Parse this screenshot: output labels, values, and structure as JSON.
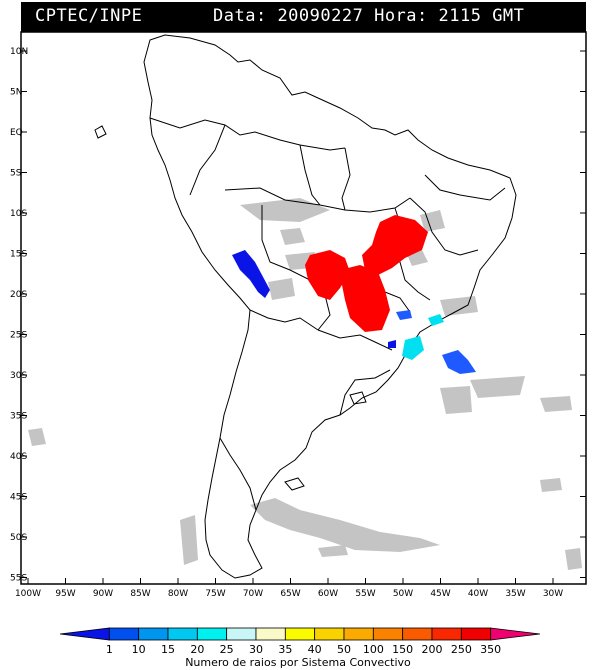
{
  "header": {
    "source": "CPTEC/INPE",
    "date_label": "Data:",
    "date_value": "20090227",
    "time_label": "Hora:",
    "time_value": "2115 GMT"
  },
  "axes": {
    "lat_labels": [
      "10N",
      "5N",
      "EQ",
      "5S",
      "10S",
      "15S",
      "20S",
      "25S",
      "30S",
      "35S",
      "40S",
      "45S",
      "50S",
      "55S"
    ],
    "lon_labels": [
      "100W",
      "95W",
      "90W",
      "85W",
      "80W",
      "75W",
      "70W",
      "65W",
      "60W",
      "55W",
      "50W",
      "45W",
      "40W",
      "35W",
      "30W"
    ]
  },
  "colorbar": {
    "title": "Numero de raios por Sistema Convectivo",
    "ticks": [
      "1",
      "10",
      "15",
      "20",
      "25",
      "30",
      "35",
      "40",
      "50",
      "100",
      "150",
      "200",
      "250",
      "350"
    ],
    "colors": [
      "#0a14e6",
      "#0050f0",
      "#0096f0",
      "#00c8f0",
      "#00f0f0",
      "#c8f5f5",
      "#fafac8",
      "#fafa00",
      "#fad200",
      "#faaa00",
      "#fa8200",
      "#fa5a00",
      "#fa2800",
      "#f00000",
      "#f0006e"
    ]
  },
  "colors": {
    "cloud": "#c0c0c0",
    "high_activity": "#ff0000",
    "low_activity": "#0a14e6",
    "medium_low": "#1e5aff",
    "cyan_activity": "#00e0f0"
  }
}
